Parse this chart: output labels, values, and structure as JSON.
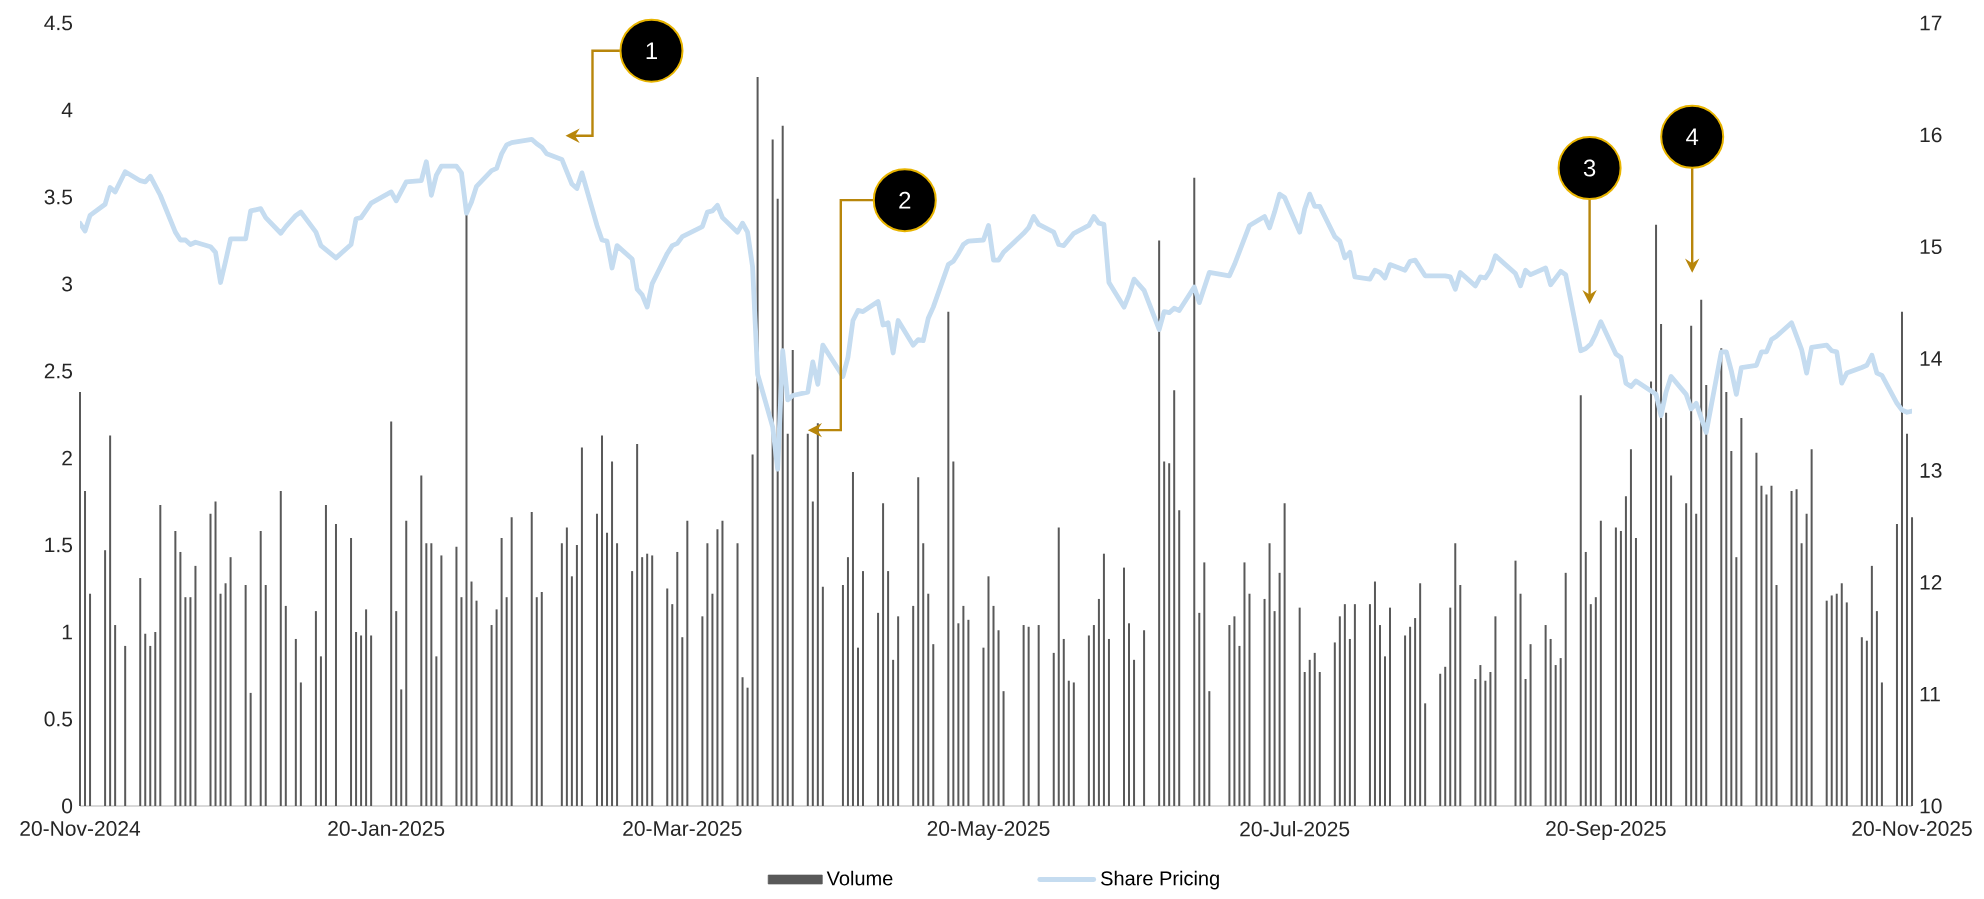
{
  "chart_data": {
    "type": "bar",
    "xlim": [
      "2024-11-20",
      "2025-11-20"
    ],
    "xticks": [
      {
        "value": "2024-11-20",
        "label": "20-Nov-2024"
      },
      {
        "value": "2025-01-20",
        "label": "20-Jan-2025"
      },
      {
        "value": "2025-03-20",
        "label": "20-Mar-2025"
      },
      {
        "value": "2025-05-20",
        "label": "20-May-2025"
      },
      {
        "value": "2025-07-20",
        "label": "20-Jul-2025"
      },
      {
        "value": "2025-09-20",
        "label": "20-Sep-2025"
      },
      {
        "value": "2025-11-20",
        "label": "20-Nov-2025"
      }
    ],
    "ylim": [
      0,
      4.5
    ],
    "yticks": [
      0,
      0.5,
      1,
      1.5,
      2,
      2.5,
      3,
      3.5,
      4,
      4.5
    ],
    "y2lim": [
      10,
      17
    ],
    "y2ticks": [
      10,
      11,
      12,
      13,
      14,
      15,
      16,
      17
    ],
    "legend": "bottom",
    "series": [
      {
        "name": "Volume",
        "color": "#595959",
        "x": [
          "2024-11-20",
          "2024-11-21",
          "2024-11-22",
          "2024-11-25",
          "2024-11-26",
          "2024-11-27",
          "2024-11-29",
          "2024-12-02",
          "2024-12-03",
          "2024-12-04",
          "2024-12-05",
          "2024-12-06",
          "2024-12-09",
          "2024-12-10",
          "2024-12-11",
          "2024-12-12",
          "2024-12-13",
          "2024-12-16",
          "2024-12-17",
          "2024-12-18",
          "2024-12-19",
          "2024-12-20",
          "2024-12-23",
          "2024-12-24",
          "2024-12-26",
          "2024-12-27",
          "2024-12-30",
          "2024-12-31",
          "2025-01-02",
          "2025-01-03",
          "2025-01-06",
          "2025-01-07",
          "2025-01-08",
          "2025-01-10",
          "2025-01-13",
          "2025-01-14",
          "2025-01-15",
          "2025-01-16",
          "2025-01-17",
          "2025-01-21",
          "2025-01-22",
          "2025-01-23",
          "2025-01-24",
          "2025-01-27",
          "2025-01-28",
          "2025-01-29",
          "2025-01-30",
          "2025-01-31",
          "2025-02-03",
          "2025-02-04",
          "2025-02-05",
          "2025-02-06",
          "2025-02-07",
          "2025-02-10",
          "2025-02-11",
          "2025-02-12",
          "2025-02-13",
          "2025-02-14",
          "2025-02-18",
          "2025-02-19",
          "2025-02-20",
          "2025-02-24",
          "2025-02-25",
          "2025-02-26",
          "2025-02-27",
          "2025-02-28",
          "2025-03-03",
          "2025-03-04",
          "2025-03-05",
          "2025-03-06",
          "2025-03-07",
          "2025-03-10",
          "2025-03-11",
          "2025-03-12",
          "2025-03-13",
          "2025-03-14",
          "2025-03-17",
          "2025-03-18",
          "2025-03-19",
          "2025-03-20",
          "2025-03-21",
          "2025-03-24",
          "2025-03-25",
          "2025-03-26",
          "2025-03-27",
          "2025-03-28",
          "2025-03-31",
          "2025-04-01",
          "2025-04-02",
          "2025-04-03",
          "2025-04-04",
          "2025-04-07",
          "2025-04-08",
          "2025-04-09",
          "2025-04-10",
          "2025-04-11",
          "2025-04-14",
          "2025-04-15",
          "2025-04-16",
          "2025-04-17",
          "2025-04-21",
          "2025-04-22",
          "2025-04-23",
          "2025-04-24",
          "2025-04-25",
          "2025-04-28",
          "2025-04-29",
          "2025-04-30",
          "2025-05-01",
          "2025-05-02",
          "2025-05-05",
          "2025-05-06",
          "2025-05-07",
          "2025-05-08",
          "2025-05-09",
          "2025-05-12",
          "2025-05-13",
          "2025-05-14",
          "2025-05-15",
          "2025-05-16",
          "2025-05-19",
          "2025-05-20",
          "2025-05-21",
          "2025-05-22",
          "2025-05-23",
          "2025-05-27",
          "2025-05-28",
          "2025-05-30",
          "2025-06-02",
          "2025-06-03",
          "2025-06-04",
          "2025-06-05",
          "2025-06-06",
          "2025-06-09",
          "2025-06-10",
          "2025-06-11",
          "2025-06-12",
          "2025-06-13",
          "2025-06-16",
          "2025-06-17",
          "2025-06-18",
          "2025-06-20",
          "2025-06-23",
          "2025-06-24",
          "2025-06-25",
          "2025-06-26",
          "2025-06-27",
          "2025-06-30",
          "2025-07-01",
          "2025-07-02",
          "2025-07-03",
          "2025-07-07",
          "2025-07-08",
          "2025-07-09",
          "2025-07-10",
          "2025-07-11",
          "2025-07-14",
          "2025-07-15",
          "2025-07-16",
          "2025-07-17",
          "2025-07-18",
          "2025-07-21",
          "2025-07-22",
          "2025-07-23",
          "2025-07-24",
          "2025-07-25",
          "2025-07-28",
          "2025-07-29",
          "2025-07-30",
          "2025-07-31",
          "2025-08-01",
          "2025-08-04",
          "2025-08-05",
          "2025-08-06",
          "2025-08-07",
          "2025-08-08",
          "2025-08-11",
          "2025-08-12",
          "2025-08-13",
          "2025-08-14",
          "2025-08-15",
          "2025-08-18",
          "2025-08-19",
          "2025-08-20",
          "2025-08-21",
          "2025-08-22",
          "2025-08-25",
          "2025-08-26",
          "2025-08-27",
          "2025-08-28",
          "2025-08-29",
          "2025-09-02",
          "2025-09-03",
          "2025-09-04",
          "2025-09-05",
          "2025-09-08",
          "2025-09-09",
          "2025-09-10",
          "2025-09-11",
          "2025-09-12",
          "2025-09-15",
          "2025-09-16",
          "2025-09-17",
          "2025-09-18",
          "2025-09-19",
          "2025-09-22",
          "2025-09-23",
          "2025-09-24",
          "2025-09-25",
          "2025-09-26",
          "2025-09-29",
          "2025-09-30",
          "2025-10-01",
          "2025-10-02",
          "2025-10-03",
          "2025-10-06",
          "2025-10-07",
          "2025-10-08",
          "2025-10-09",
          "2025-10-10",
          "2025-10-13",
          "2025-10-14",
          "2025-10-15",
          "2025-10-16",
          "2025-10-17",
          "2025-10-20",
          "2025-10-21",
          "2025-10-22",
          "2025-10-23",
          "2025-10-24",
          "2025-10-27",
          "2025-10-28",
          "2025-10-29",
          "2025-10-30",
          "2025-10-31",
          "2025-11-03",
          "2025-11-04",
          "2025-11-05",
          "2025-11-06",
          "2025-11-07",
          "2025-11-10",
          "2025-11-11",
          "2025-11-12",
          "2025-11-13",
          "2025-11-14",
          "2025-11-17",
          "2025-11-18",
          "2025-11-19",
          "2025-11-20"
        ],
        "values": [
          2.38,
          1.81,
          1.22,
          1.47,
          2.13,
          1.04,
          0.92,
          1.31,
          0.99,
          0.92,
          1.0,
          1.73,
          1.58,
          1.46,
          1.2,
          1.2,
          1.38,
          1.68,
          1.75,
          1.22,
          1.28,
          1.43,
          1.27,
          0.65,
          1.58,
          1.27,
          1.81,
          1.15,
          0.96,
          0.71,
          1.12,
          0.86,
          1.73,
          1.62,
          1.54,
          1.0,
          0.98,
          1.13,
          0.98,
          2.21,
          1.12,
          0.67,
          1.64,
          1.9,
          1.51,
          1.51,
          0.86,
          1.44,
          1.49,
          1.2,
          3.4,
          1.29,
          1.18,
          1.04,
          1.13,
          1.54,
          1.2,
          1.66,
          1.69,
          1.2,
          1.23,
          1.51,
          1.6,
          1.32,
          1.5,
          2.06,
          1.68,
          2.13,
          1.57,
          1.98,
          1.51,
          1.35,
          2.08,
          1.43,
          1.45,
          1.44,
          1.25,
          1.16,
          1.46,
          0.97,
          1.64,
          1.09,
          1.51,
          1.22,
          1.59,
          1.64,
          1.51,
          0.74,
          0.68,
          2.02,
          4.19,
          3.83,
          3.49,
          3.91,
          2.14,
          2.62,
          2.14,
          1.75,
          2.2,
          1.26,
          1.27,
          1.43,
          1.92,
          0.91,
          1.35,
          1.11,
          1.74,
          1.35,
          0.84,
          1.09,
          1.15,
          1.89,
          1.51,
          1.22,
          0.93,
          2.84,
          1.98,
          1.05,
          1.15,
          1.07,
          0.91,
          1.32,
          1.15,
          1.01,
          0.66,
          1.04,
          1.03,
          1.04,
          0.88,
          1.6,
          0.96,
          0.72,
          0.71,
          0.98,
          1.04,
          1.19,
          1.45,
          0.96,
          1.37,
          1.05,
          0.84,
          1.01,
          3.25,
          1.98,
          1.97,
          2.39,
          1.7,
          3.61,
          1.11,
          1.4,
          0.66,
          1.04,
          1.09,
          0.92,
          1.4,
          1.22,
          1.19,
          1.51,
          1.12,
          1.34,
          1.74,
          1.14,
          0.77,
          0.84,
          0.88,
          0.77,
          0.94,
          1.09,
          1.16,
          0.96,
          1.16,
          1.16,
          1.29,
          1.04,
          0.86,
          1.14,
          0.98,
          1.03,
          1.08,
          1.28,
          0.59,
          0.76,
          0.8,
          1.14,
          1.51,
          1.27,
          0.73,
          0.81,
          0.72,
          0.77,
          1.09,
          1.41,
          1.22,
          0.73,
          0.93,
          1.04,
          0.96,
          0.81,
          0.85,
          1.34,
          2.36,
          1.46,
          1.16,
          1.2,
          1.64,
          1.6,
          1.58,
          1.78,
          2.05,
          1.54,
          2.44,
          3.34,
          2.77,
          2.26,
          1.9,
          1.74,
          2.76,
          1.68,
          2.91,
          2.42,
          2.63,
          2.38,
          2.04,
          1.43,
          2.23,
          2.03,
          1.84,
          1.79,
          1.84,
          1.27,
          1.81,
          1.82,
          1.51,
          1.68,
          2.05,
          1.18,
          1.21,
          1.22,
          1.28,
          1.17,
          0.97,
          0.95,
          1.38,
          1.12,
          0.71,
          1.62,
          2.84,
          2.14,
          1.66
        ]
      },
      {
        "name": "Share Pricing",
        "type": "line",
        "axis": "y2",
        "color": "#c5dcf0",
        "x": [
          "2024-11-20",
          "2024-11-21",
          "2024-11-22",
          "2024-11-25",
          "2024-11-26",
          "2024-11-27",
          "2024-11-29",
          "2024-12-02",
          "2024-12-03",
          "2024-12-04",
          "2024-12-06",
          "2024-12-09",
          "2024-12-10",
          "2024-12-11",
          "2024-12-12",
          "2024-12-13",
          "2024-12-16",
          "2024-12-17",
          "2024-12-18",
          "2024-12-19",
          "2024-12-20",
          "2024-12-23",
          "2024-12-24",
          "2024-12-26",
          "2024-12-27",
          "2024-12-30",
          "2024-12-31",
          "2025-01-02",
          "2025-01-03",
          "2025-01-06",
          "2025-01-07",
          "2025-01-10",
          "2025-01-13",
          "2025-01-14",
          "2025-01-15",
          "2025-01-17",
          "2025-01-21",
          "2025-01-22",
          "2025-01-24",
          "2025-01-27",
          "2025-01-28",
          "2025-01-29",
          "2025-01-30",
          "2025-01-31",
          "2025-02-03",
          "2025-02-04",
          "2025-02-05",
          "2025-02-06",
          "2025-02-07",
          "2025-02-10",
          "2025-02-11",
          "2025-02-12",
          "2025-02-13",
          "2025-02-14",
          "2025-02-18",
          "2025-02-19",
          "2025-02-20",
          "2025-02-21",
          "2025-02-24",
          "2025-02-26",
          "2025-02-27",
          "2025-02-28",
          "2025-03-03",
          "2025-03-04",
          "2025-03-05",
          "2025-03-06",
          "2025-03-07",
          "2025-03-10",
          "2025-03-11",
          "2025-03-12",
          "2025-03-13",
          "2025-03-14",
          "2025-03-17",
          "2025-03-18",
          "2025-03-19",
          "2025-03-20",
          "2025-03-24",
          "2025-03-25",
          "2025-03-26",
          "2025-03-27",
          "2025-03-28",
          "2025-03-31",
          "2025-04-01",
          "2025-04-02",
          "2025-04-03",
          "2025-04-04",
          "2025-04-07",
          "2025-04-08",
          "2025-04-09",
          "2025-04-10",
          "2025-04-11",
          "2025-04-14",
          "2025-04-15",
          "2025-04-16",
          "2025-04-17",
          "2025-04-21",
          "2025-04-22",
          "2025-04-23",
          "2025-04-24",
          "2025-04-25",
          "2025-04-28",
          "2025-04-29",
          "2025-04-30",
          "2025-05-01",
          "2025-05-02",
          "2025-05-05",
          "2025-05-06",
          "2025-05-07",
          "2025-05-08",
          "2025-05-09",
          "2025-05-12",
          "2025-05-13",
          "2025-05-14",
          "2025-05-15",
          "2025-05-16",
          "2025-05-19",
          "2025-05-20",
          "2025-05-21",
          "2025-05-22",
          "2025-05-23",
          "2025-05-27",
          "2025-05-28",
          "2025-05-29",
          "2025-05-30",
          "2025-06-02",
          "2025-06-03",
          "2025-06-04",
          "2025-06-06",
          "2025-06-09",
          "2025-06-10",
          "2025-06-11",
          "2025-06-12",
          "2025-06-13",
          "2025-06-16",
          "2025-06-17",
          "2025-06-18",
          "2025-06-20",
          "2025-06-23",
          "2025-06-24",
          "2025-06-25",
          "2025-06-26",
          "2025-06-27",
          "2025-06-30",
          "2025-07-01",
          "2025-07-03",
          "2025-07-07",
          "2025-07-08",
          "2025-07-11",
          "2025-07-14",
          "2025-07-15",
          "2025-07-16",
          "2025-07-17",
          "2025-07-18",
          "2025-07-21",
          "2025-07-22",
          "2025-07-23",
          "2025-07-24",
          "2025-07-25",
          "2025-07-28",
          "2025-07-29",
          "2025-07-30",
          "2025-07-31",
          "2025-08-01",
          "2025-08-04",
          "2025-08-05",
          "2025-08-06",
          "2025-08-07",
          "2025-08-08",
          "2025-08-11",
          "2025-08-12",
          "2025-08-13",
          "2025-08-15",
          "2025-08-18",
          "2025-08-19",
          "2025-08-20",
          "2025-08-21",
          "2025-08-22",
          "2025-08-25",
          "2025-08-26",
          "2025-08-27",
          "2025-08-28",
          "2025-08-29",
          "2025-09-02",
          "2025-09-03",
          "2025-09-04",
          "2025-09-05",
          "2025-09-08",
          "2025-09-09",
          "2025-09-10",
          "2025-09-11",
          "2025-09-12",
          "2025-09-15",
          "2025-09-16",
          "2025-09-17",
          "2025-09-18",
          "2025-09-19",
          "2025-09-22",
          "2025-09-23",
          "2025-09-24",
          "2025-09-25",
          "2025-09-26",
          "2025-09-29",
          "2025-09-30",
          "2025-10-01",
          "2025-10-02",
          "2025-10-03",
          "2025-10-06",
          "2025-10-07",
          "2025-10-08",
          "2025-10-09",
          "2025-10-10",
          "2025-10-13",
          "2025-10-14",
          "2025-10-15",
          "2025-10-16",
          "2025-10-17",
          "2025-10-20",
          "2025-10-21",
          "2025-10-22",
          "2025-10-23",
          "2025-10-24",
          "2025-10-27",
          "2025-10-28",
          "2025-10-29",
          "2025-10-30",
          "2025-10-31",
          "2025-11-03",
          "2025-11-04",
          "2025-11-05",
          "2025-11-06",
          "2025-11-07",
          "2025-11-10",
          "2025-11-11",
          "2025-11-12",
          "2025-11-13",
          "2025-11-14",
          "2025-11-17",
          "2025-11-18",
          "2025-11-19",
          "2025-11-20"
        ],
        "values": [
          15.21,
          15.14,
          15.28,
          15.38,
          15.53,
          15.49,
          15.67,
          15.59,
          15.58,
          15.63,
          15.46,
          15.13,
          15.06,
          15.06,
          15.02,
          15.04,
          15.0,
          14.95,
          14.68,
          14.87,
          15.07,
          15.07,
          15.32,
          15.34,
          15.26,
          15.12,
          15.18,
          15.28,
          15.31,
          15.13,
          15.01,
          14.9,
          15.02,
          15.25,
          15.26,
          15.39,
          15.49,
          15.41,
          15.58,
          15.59,
          15.76,
          15.46,
          15.64,
          15.72,
          15.72,
          15.66,
          15.3,
          15.4,
          15.54,
          15.68,
          15.7,
          15.83,
          15.91,
          15.93,
          15.96,
          15.92,
          15.89,
          15.83,
          15.78,
          15.56,
          15.52,
          15.66,
          15.19,
          15.06,
          15.05,
          14.81,
          15.01,
          14.89,
          14.62,
          14.57,
          14.46,
          14.67,
          14.94,
          15.01,
          15.03,
          15.09,
          15.18,
          15.31,
          15.32,
          15.37,
          15.26,
          15.13,
          15.21,
          15.13,
          14.82,
          13.86,
          13.39,
          13.01,
          14.07,
          13.63,
          13.67,
          13.7,
          13.97,
          13.77,
          14.12,
          13.84,
          14.01,
          14.34,
          14.43,
          14.42,
          14.51,
          14.3,
          14.32,
          14.05,
          14.34,
          14.12,
          14.17,
          14.16,
          14.36,
          14.46,
          14.84,
          14.87,
          14.94,
          15.02,
          15.05,
          15.06,
          15.19,
          14.88,
          14.88,
          14.95,
          15.12,
          15.17,
          15.27,
          15.2,
          15.13,
          15.02,
          15.01,
          15.12,
          15.19,
          15.27,
          15.21,
          15.2,
          14.68,
          14.46,
          14.57,
          14.71,
          14.61,
          14.26,
          14.42,
          14.41,
          14.45,
          14.43,
          14.64,
          14.5,
          14.77,
          14.74,
          14.84,
          15.19,
          15.27,
          15.17,
          15.31,
          15.47,
          15.44,
          15.13,
          15.34,
          15.47,
          15.36,
          15.36,
          15.09,
          15.05,
          14.9,
          14.95,
          14.73,
          14.71,
          14.79,
          14.77,
          14.72,
          14.84,
          14.79,
          14.87,
          14.88,
          14.74,
          14.74,
          14.74,
          14.73,
          14.62,
          14.77,
          14.65,
          14.73,
          14.72,
          14.79,
          14.92,
          14.76,
          14.65,
          14.79,
          14.75,
          14.81,
          14.66,
          14.72,
          14.78,
          14.75,
          14.07,
          14.09,
          14.13,
          14.22,
          14.33,
          14.04,
          14.01,
          13.78,
          13.75,
          13.8,
          13.71,
          13.68,
          13.49,
          13.7,
          13.84,
          13.68,
          13.55,
          13.6,
          13.47,
          13.34,
          14.06,
          14.06,
          13.89,
          13.68,
          13.92,
          13.94,
          14.06,
          14.06,
          14.17,
          14.2,
          14.32,
          14.2,
          14.08,
          13.87,
          14.1,
          14.12,
          14.07,
          14.06,
          13.78,
          13.87,
          13.92,
          13.94,
          14.03,
          13.87,
          13.85,
          13.6,
          13.54,
          13.52,
          13.53
        ]
      }
    ],
    "annotations": [
      "1",
      {
        "text": "2",
        "x": "2025-04-14",
        "y": 2.16
      },
      "3",
      "4"
    ]
  }
}
